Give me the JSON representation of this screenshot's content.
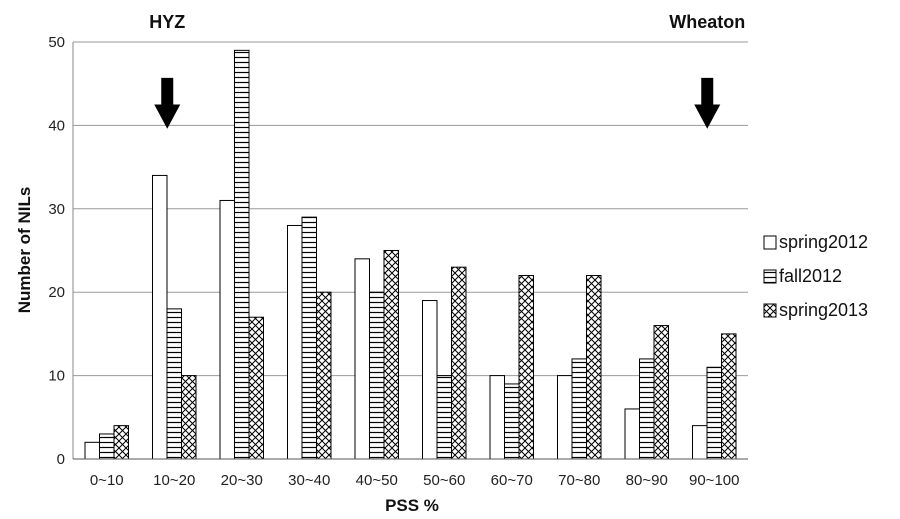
{
  "chart_data": {
    "type": "bar",
    "xlabel": "PSS %",
    "ylabel": "Number of NILs",
    "ylim": [
      0,
      50
    ],
    "yticks": [
      0,
      10,
      20,
      30,
      40,
      50
    ],
    "grid": "horizontal",
    "legend_position": "right",
    "categories": [
      "0~10",
      "10~20",
      "20~30",
      "30~40",
      "40~50",
      "50~60",
      "60~70",
      "70~80",
      "80~90",
      "90~100"
    ],
    "series": [
      {
        "name": "spring2012",
        "pattern": "blank",
        "values": [
          2,
          34,
          31,
          28,
          24,
          19,
          10,
          10,
          6,
          4
        ]
      },
      {
        "name": "fall2012",
        "pattern": "horizontal",
        "values": [
          3,
          18,
          49,
          29,
          20,
          10,
          9,
          12,
          12,
          11
        ]
      },
      {
        "name": "spring2013",
        "pattern": "crosshatch",
        "values": [
          4,
          10,
          17,
          20,
          25,
          23,
          22,
          22,
          16,
          15
        ]
      }
    ],
    "annotations": [
      {
        "text": "HYZ",
        "arrow_category": "10~20"
      },
      {
        "text": "Wheaton",
        "arrow_category": "90~100"
      }
    ]
  }
}
